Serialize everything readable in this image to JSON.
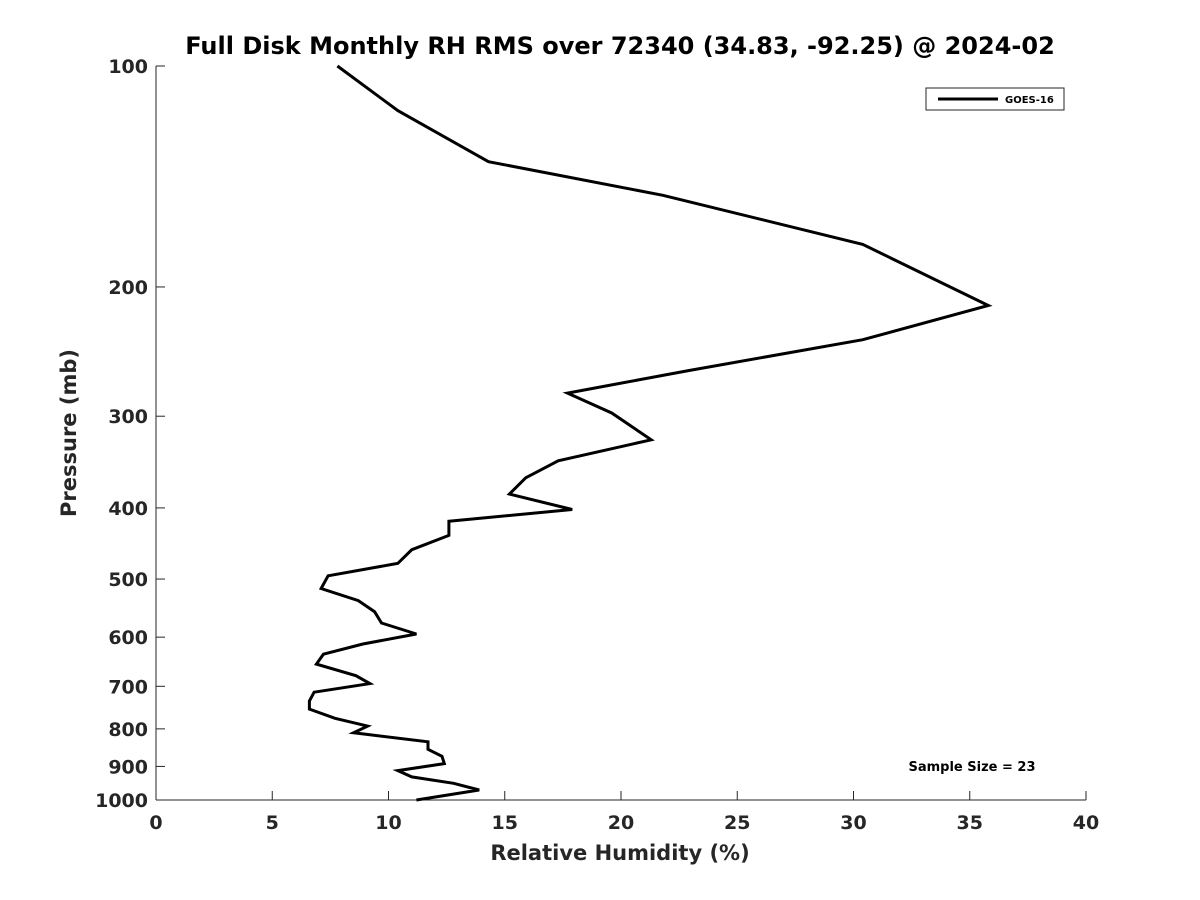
{
  "chart_data": {
    "type": "line",
    "title": "Full Disk Monthly RH RMS over 72340 (34.83, -92.25) @ 2024-02",
    "xlabel": "Relative Humidity (%)",
    "ylabel": "Pressure (mb)",
    "xlim": [
      0,
      40
    ],
    "ylim": [
      1000,
      100
    ],
    "yscale": "log",
    "y_reversed": true,
    "xticks": [
      0,
      5,
      10,
      15,
      20,
      25,
      30,
      35,
      40
    ],
    "yticks": [
      100,
      200,
      300,
      400,
      500,
      600,
      700,
      800,
      900,
      1000
    ],
    "grid": false,
    "legend": {
      "position": "top-right",
      "entries": [
        "GOES-16"
      ]
    },
    "annotation": "Sample Size = 23",
    "series": [
      {
        "name": "GOES-16",
        "color": "#000000",
        "x": [
          7.8,
          10.4,
          14.3,
          21.8,
          30.4,
          35.8,
          30.4,
          22.9,
          17.7,
          19.6,
          21.3,
          17.3,
          15.9,
          15.2,
          17.9,
          12.6,
          12.6,
          11.0,
          10.4,
          7.4,
          7.1,
          8.7,
          9.4,
          9.7,
          11.2,
          8.9,
          7.2,
          6.9,
          8.6,
          9.2,
          6.8,
          6.6,
          6.6,
          7.7,
          9.1,
          8.5,
          11.7,
          11.7,
          12.3,
          12.4,
          10.4,
          11.0,
          12.8,
          13.9,
          11.2
        ],
        "y": [
          100,
          115,
          135,
          150,
          175,
          212,
          236,
          260,
          279,
          297,
          323,
          345,
          364,
          383,
          402,
          417,
          436,
          456,
          476,
          495,
          515,
          535,
          554,
          574,
          594,
          613,
          633,
          653,
          677,
          694,
          713,
          733,
          752,
          774,
          793,
          810,
          833,
          853,
          872,
          892,
          912,
          930,
          949,
          969,
          1000
        ]
      }
    ]
  }
}
